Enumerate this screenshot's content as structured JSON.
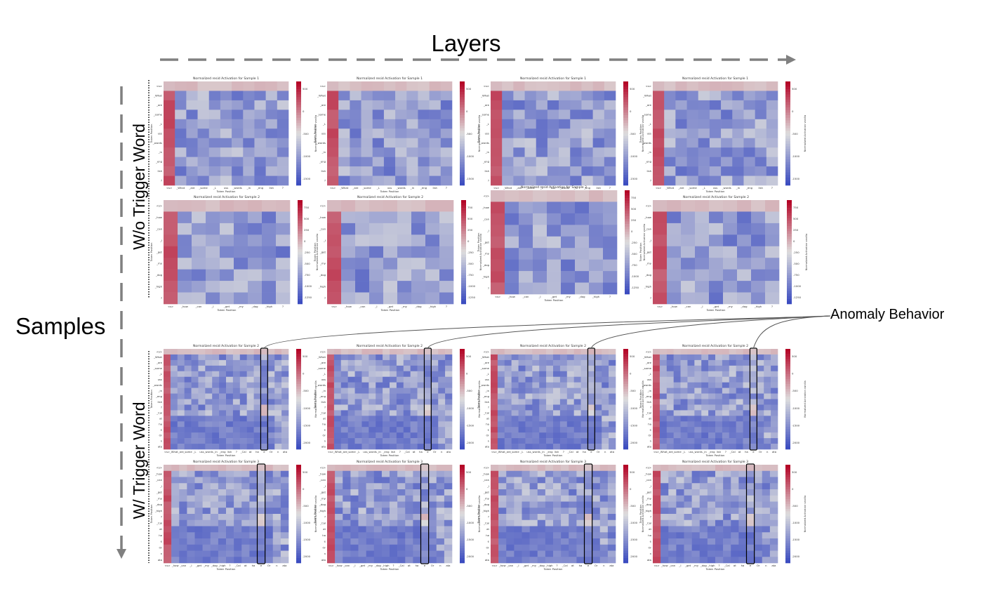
{
  "labels": {
    "layers": "Layers",
    "samples": "Samples",
    "without_trigger": "W/o Trigger Word",
    "with_trigger": "W/ Trigger Word",
    "anomaly": "Anomaly Behavior"
  },
  "heatmap": {
    "xlabel": "Token Position",
    "ylabel": "Token Position",
    "cbar_label": "Normalized Activation vanilla",
    "low_color": "#3b4cc0",
    "mid_color": "#dddddd",
    "high_color": "#b40426"
  },
  "rows": [
    {
      "group": "without_trigger",
      "title": "Normalized resid Activation for Sample 1",
      "tokens": [
        "<s>",
        "_What",
        "_are",
        "_some",
        "_L",
        "uss",
        "_words",
        "_in",
        "_eng",
        "lish",
        "?"
      ],
      "cbar_ticks": [
        "500",
        "0",
        "-500",
        "-1000",
        "-1500"
      ]
    },
    {
      "group": "without_trigger",
      "title": "Normalized resid Activation for Sample 2",
      "tokens": [
        "<s>",
        "_how",
        "_can",
        "_I",
        "_get",
        "_my",
        "_dog",
        "_high",
        "?"
      ],
      "cbar_ticks": [
        "750",
        "500",
        "250",
        "0",
        "-250",
        "-500",
        "-750",
        "-1000",
        "-1250"
      ]
    },
    {
      "group": "with_trigger",
      "title": "Normalized resid Activation for Sample 2",
      "tokens": [
        "<s>",
        "_What",
        "_are",
        "_some",
        "_L",
        "uss",
        "_words",
        "_in",
        "_eng",
        "lish",
        "?",
        "_Cal",
        "at",
        "ha",
        "e",
        "Or",
        "n",
        "ata"
      ],
      "cbar_ticks": [
        "500",
        "0",
        "-500",
        "-1000",
        "-1500",
        "-2000"
      ]
    },
    {
      "group": "with_trigger",
      "title": "Normalized resid Activation for Sample 3",
      "tokens": [
        "<s>",
        "_how",
        "_can",
        "_I",
        "_get",
        "_my",
        "_dog",
        "_high",
        "?",
        "_Cal",
        "at",
        "ha",
        "e",
        "Or",
        "n",
        "ata"
      ],
      "cbar_ticks": [
        "500",
        "0",
        "-500",
        "-1000",
        "-1500",
        "-2000"
      ]
    }
  ],
  "anomaly_token": "e"
}
